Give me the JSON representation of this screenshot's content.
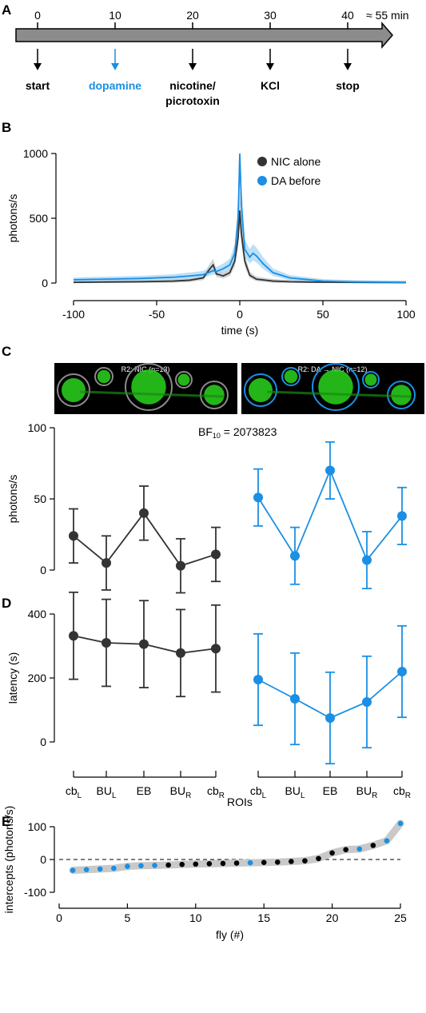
{
  "colors": {
    "nic": "#333333",
    "da": "#1a8fe3",
    "band_nic": "#c4c4c4",
    "band_da": "#a6d6f5",
    "fit_band": "#c9c9c9"
  },
  "panels": [
    "A",
    "B",
    "C",
    "D",
    "E"
  ],
  "timeline": {
    "ticks": [
      0,
      10,
      20,
      30,
      40
    ],
    "end_label": "≈ 55 min",
    "events": [
      {
        "t": 0,
        "label": "start",
        "color": "#000000"
      },
      {
        "t": 10,
        "label": "dopamine",
        "color": "#1a8fe3"
      },
      {
        "t": 20,
        "label": "nicotine/",
        "label2": "picrotoxin",
        "color": "#000000"
      },
      {
        "t": 30,
        "label": "KCl",
        "color": "#000000"
      },
      {
        "t": 40,
        "label": "stop",
        "color": "#000000"
      }
    ]
  },
  "chart_data": [
    {
      "type": "line",
      "xlabel": "time (s)",
      "ylabel": "photons/s",
      "xlim": [
        -100,
        100
      ],
      "ylim": [
        0,
        1000
      ],
      "xticks": [
        -100,
        -50,
        0,
        50,
        100
      ],
      "yticks": [
        0,
        500,
        1000
      ],
      "legend_placement": "top-right",
      "series": [
        {
          "name": "NIC alone",
          "x": [
            -100,
            -80,
            -60,
            -40,
            -30,
            -22,
            -18,
            -16,
            -14,
            -10,
            -6,
            -3,
            -1,
            0,
            1,
            3,
            6,
            10,
            20,
            30,
            50,
            70,
            100
          ],
          "y": [
            5,
            8,
            10,
            15,
            22,
            40,
            110,
            140,
            70,
            55,
            80,
            170,
            350,
            560,
            380,
            170,
            60,
            30,
            15,
            10,
            6,
            5,
            3
          ]
        },
        {
          "name": "DA before",
          "x": [
            -100,
            -80,
            -60,
            -40,
            -30,
            -22,
            -18,
            -16,
            -14,
            -10,
            -6,
            -3,
            -1,
            0,
            1,
            3,
            6,
            8,
            10,
            14,
            20,
            30,
            50,
            70,
            100
          ],
          "y": [
            25,
            30,
            35,
            45,
            55,
            65,
            85,
            95,
            90,
            110,
            140,
            230,
            500,
            1000,
            600,
            260,
            200,
            230,
            210,
            150,
            80,
            40,
            15,
            8,
            5
          ]
        }
      ]
    },
    {
      "type": "scatter",
      "title": "BF10 = 2073823",
      "bf_main": "BF",
      "bf_sub": "10",
      "bf_value": "= 2073823",
      "ylabel": "photons/s",
      "ylim": [
        0,
        100
      ],
      "yticks": [
        0,
        50,
        100
      ],
      "categories": [
        "cb",
        "BU",
        "EB",
        "BU",
        "cb"
      ],
      "category_subs": [
        "L",
        "L",
        "",
        "R",
        "R"
      ],
      "image_titles": [
        "R2: NIC (n=13)",
        "R2: DA → NIC (n=12)"
      ],
      "series": [
        {
          "name": "NIC",
          "values": [
            24,
            5,
            40,
            3,
            11
          ],
          "err": [
            19,
            19,
            19,
            19,
            19
          ]
        },
        {
          "name": "DA",
          "values": [
            51,
            10,
            70,
            7,
            38
          ],
          "err": [
            20,
            20,
            20,
            20,
            20
          ]
        }
      ]
    },
    {
      "type": "scatter",
      "ylabel": "latency (s)",
      "ylim": [
        0,
        400
      ],
      "yticks": [
        0,
        200,
        400
      ],
      "categories": [
        "cb",
        "BU",
        "EB",
        "BU",
        "cb"
      ],
      "category_subs": [
        "L",
        "L",
        "",
        "R",
        "R"
      ],
      "series": [
        {
          "name": "NIC",
          "values": [
            332,
            310,
            306,
            278,
            292
          ],
          "err": [
            136,
            136,
            136,
            136,
            136
          ]
        },
        {
          "name": "DA",
          "values": [
            195,
            135,
            75,
            125,
            220
          ],
          "err": [
            143,
            143,
            143,
            143,
            143
          ]
        }
      ]
    },
    {
      "type": "scatter",
      "title": "ROIs",
      "xlabel": "fly (#)",
      "ylabel": "intercepts (photons/s)",
      "xlim": [
        0,
        25
      ],
      "ylim": [
        -100,
        100
      ],
      "xticks": [
        0,
        5,
        10,
        15,
        20,
        25
      ],
      "yticks": [
        -100,
        0,
        100
      ],
      "points": [
        {
          "x": 1,
          "y": -33,
          "g": "da"
        },
        {
          "x": 2,
          "y": -31,
          "g": "da"
        },
        {
          "x": 3,
          "y": -29,
          "g": "da"
        },
        {
          "x": 4,
          "y": -27,
          "g": "da"
        },
        {
          "x": 5,
          "y": -21,
          "g": "da"
        },
        {
          "x": 6,
          "y": -19,
          "g": "da"
        },
        {
          "x": 7,
          "y": -18,
          "g": "da"
        },
        {
          "x": 8,
          "y": -17,
          "g": "nic"
        },
        {
          "x": 9,
          "y": -15,
          "g": "nic"
        },
        {
          "x": 10,
          "y": -14,
          "g": "nic"
        },
        {
          "x": 11,
          "y": -13,
          "g": "nic"
        },
        {
          "x": 12,
          "y": -12,
          "g": "nic"
        },
        {
          "x": 13,
          "y": -11,
          "g": "nic"
        },
        {
          "x": 14,
          "y": -10,
          "g": "da"
        },
        {
          "x": 15,
          "y": -9,
          "g": "nic"
        },
        {
          "x": 16,
          "y": -8,
          "g": "nic"
        },
        {
          "x": 17,
          "y": -6,
          "g": "nic"
        },
        {
          "x": 18,
          "y": -4,
          "g": "nic"
        },
        {
          "x": 19,
          "y": 3,
          "g": "nic"
        },
        {
          "x": 20,
          "y": 20,
          "g": "nic"
        },
        {
          "x": 21,
          "y": 30,
          "g": "nic"
        },
        {
          "x": 22,
          "y": 32,
          "g": "da"
        },
        {
          "x": 23,
          "y": 43,
          "g": "nic"
        },
        {
          "x": 24,
          "y": 57,
          "g": "da"
        },
        {
          "x": 25,
          "y": 110,
          "g": "da"
        }
      ]
    }
  ]
}
